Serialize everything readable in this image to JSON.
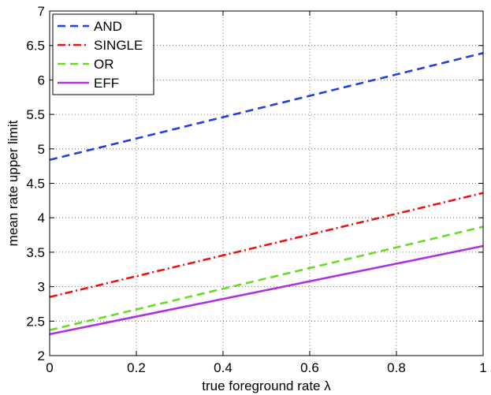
{
  "chart_data": {
    "type": "line",
    "title": "",
    "xlabel": "true foreground rate λ",
    "ylabel": "mean rate upper limit",
    "xlim": [
      0,
      1
    ],
    "ylim": [
      2,
      7
    ],
    "xticks": [
      0,
      0.2,
      0.4,
      0.6,
      0.8,
      1
    ],
    "yticks": [
      2,
      2.5,
      3,
      3.5,
      4,
      4.5,
      5,
      5.5,
      6,
      6.5,
      7
    ],
    "xtick_labels": [
      "0",
      "0.2",
      "0.4",
      "0.6",
      "0.8",
      "1"
    ],
    "ytick_labels": [
      "2",
      "2.5",
      "3",
      "3.5",
      "4",
      "4.5",
      "5",
      "5.5",
      "6",
      "6.5",
      "7"
    ],
    "grid": true,
    "legend_position": "top-left",
    "x": [
      0,
      1
    ],
    "series": [
      {
        "name": "AND",
        "values": [
          4.84,
          6.39
        ],
        "color": "#2040e0",
        "dash": "dashed"
      },
      {
        "name": "SINGLE",
        "values": [
          2.85,
          4.36
        ],
        "color": "#ee1111",
        "dash": "dashdot"
      },
      {
        "name": "OR",
        "values": [
          2.37,
          3.87
        ],
        "color": "#66dd22",
        "dash": "dashed"
      },
      {
        "name": "EFF",
        "values": [
          2.31,
          3.59
        ],
        "color": "#b030e0",
        "dash": "solid"
      }
    ]
  }
}
